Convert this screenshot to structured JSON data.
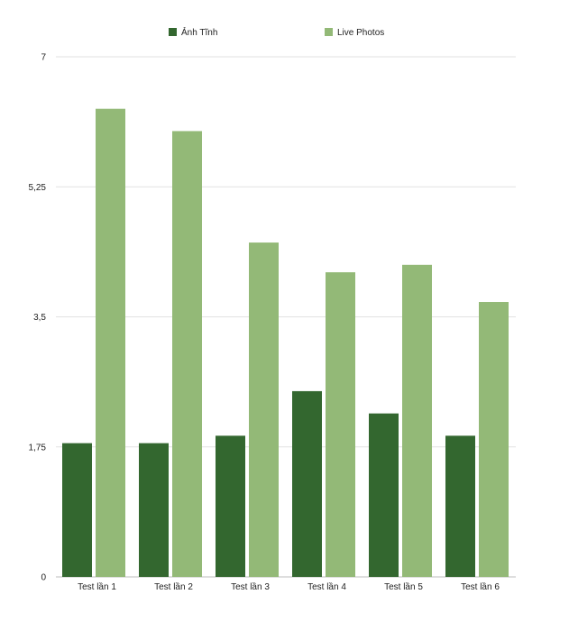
{
  "chart_data": {
    "type": "bar",
    "categories": [
      "Test lần 1",
      "Test lần 2",
      "Test lần 3",
      "Test lần 4",
      "Test lần 5",
      "Test lần 6"
    ],
    "series": [
      {
        "name": "Ảnh Tĩnh",
        "color": "#33672f",
        "values": [
          1.8,
          1.8,
          1.9,
          2.5,
          2.2,
          1.9
        ]
      },
      {
        "name": "Live Photos",
        "color": "#93b977",
        "values": [
          6.3,
          6.0,
          4.5,
          4.1,
          4.2,
          3.7
        ]
      }
    ],
    "yticks": [
      "0",
      "1,75",
      "3,5",
      "5,25",
      "7"
    ],
    "ylim": [
      0,
      7
    ],
    "grid": true,
    "legend_position": "top-center"
  }
}
